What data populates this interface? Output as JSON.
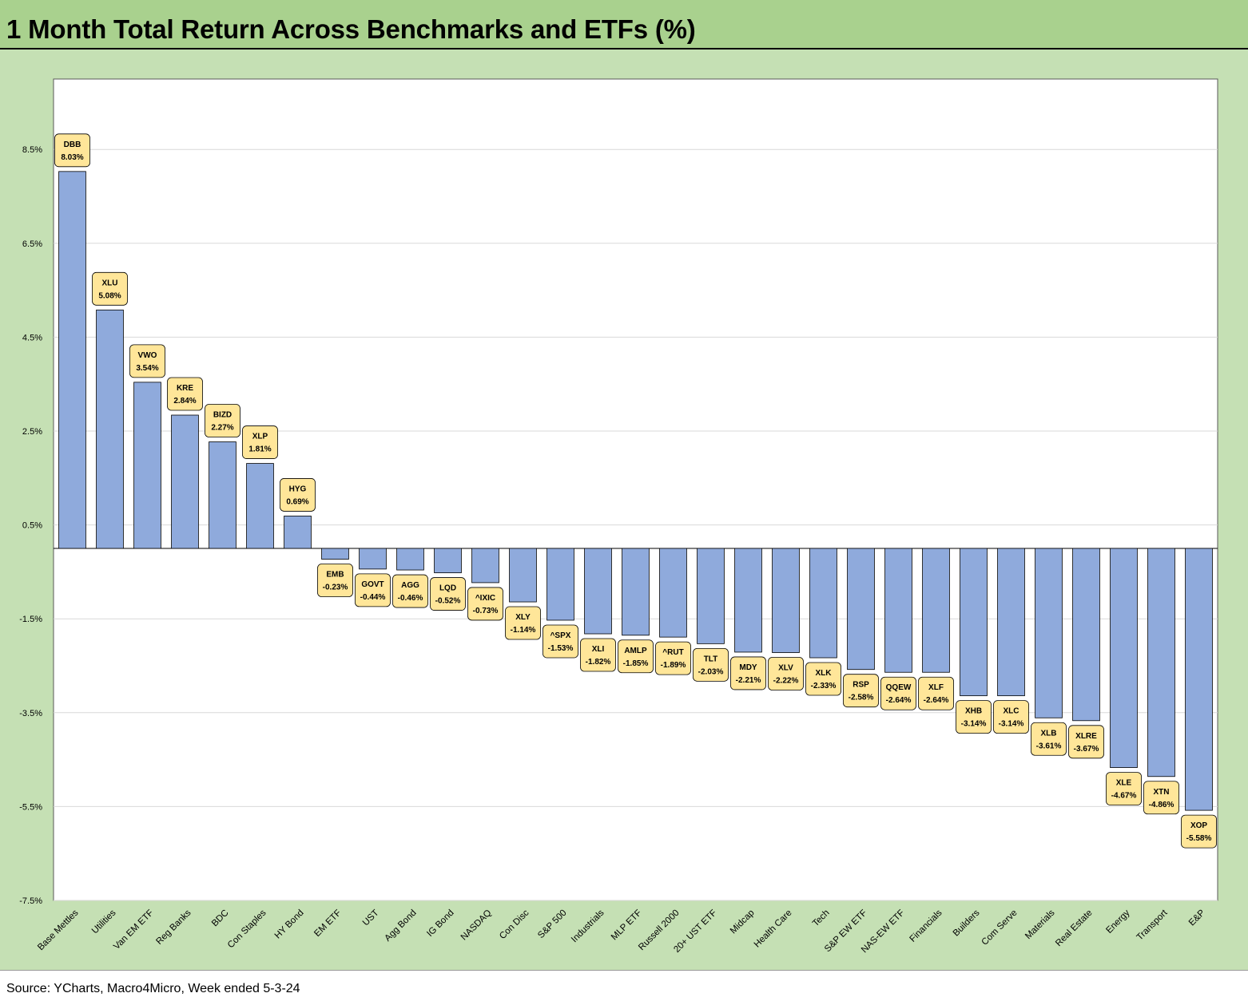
{
  "title": "1 Month Total Return Across Benchmarks and ETFs (%)",
  "source": "Source: YCharts, Macro4Micro, Week ended 5-3-24",
  "colors": {
    "bar": "#8faadc",
    "label_fill": "#ffe699",
    "frame": "#c5e0b4",
    "title_bar": "#a9d18e"
  },
  "chart_data": {
    "type": "bar",
    "title": "1 Month Total Return Across Benchmarks and ETFs (%)",
    "xlabel": "",
    "ylabel": "",
    "ylim": [
      -7.5,
      10.0
    ],
    "yticks": [
      "8.5%",
      "6.5%",
      "4.5%",
      "2.5%",
      "0.5%",
      "-1.5%",
      "-3.5%",
      "-5.5%",
      "-7.5%"
    ],
    "ytick_values": [
      8.5,
      6.5,
      4.5,
      2.5,
      0.5,
      -1.5,
      -3.5,
      -5.5,
      -7.5
    ],
    "grid": true,
    "categories": [
      "Base Mettles",
      "Utilities",
      "Van EM ETF",
      "Reg Banks",
      "BDC",
      "Con Staples",
      "HY Bond",
      "EM ETF",
      "UST",
      "Agg Bond",
      "IG Bond",
      "NASDAQ",
      "Con Disc",
      "S&P 500",
      "Industrials",
      "MLP ETF",
      "Russell 2000",
      "20+ UST ETF",
      "Midcap",
      "Health Care",
      "Tech",
      "S&P EW ETF",
      "NAS-EW ETF",
      "Financials",
      "Builders",
      "Com Serve",
      "Materials",
      "Real Estate",
      "Energy",
      "Transport",
      "E&P"
    ],
    "tickers": [
      "DBB",
      "XLU",
      "VWO",
      "KRE",
      "BIZD",
      "XLP",
      "HYG",
      "EMB",
      "GOVT",
      "AGG",
      "LQD",
      "^IXIC",
      "XLY",
      "^SPX",
      "XLI",
      "AMLP",
      "^RUT",
      "TLT",
      "MDY",
      "XLV",
      "XLK",
      "RSP",
      "QQEW",
      "XLF",
      "XHB",
      "XLC",
      "XLB",
      "XLRE",
      "XLE",
      "XTN",
      "XOP"
    ],
    "values": [
      8.03,
      5.08,
      3.54,
      2.84,
      2.27,
      1.81,
      0.69,
      -0.23,
      -0.44,
      -0.46,
      -0.52,
      -0.73,
      -1.14,
      -1.53,
      -1.82,
      -1.85,
      -1.89,
      -2.03,
      -2.21,
      -2.22,
      -2.33,
      -2.58,
      -2.64,
      -2.64,
      -3.14,
      -3.14,
      -3.61,
      -3.67,
      -4.67,
      -4.86,
      -5.58
    ],
    "value_labels": [
      "8.03%",
      "5.08%",
      "3.54%",
      "2.84%",
      "2.27%",
      "1.81%",
      "0.69%",
      "-0.23%",
      "-0.44%",
      "-0.46%",
      "-0.52%",
      "-0.73%",
      "-1.14%",
      "-1.53%",
      "-1.82%",
      "-1.85%",
      "-1.89%",
      "-2.03%",
      "-2.21%",
      "-2.22%",
      "-2.33%",
      "-2.58%",
      "-2.64%",
      "-2.64%",
      "-3.14%",
      "-3.14%",
      "-3.61%",
      "-3.67%",
      "-4.67%",
      "-4.86%",
      "-5.58%"
    ]
  }
}
